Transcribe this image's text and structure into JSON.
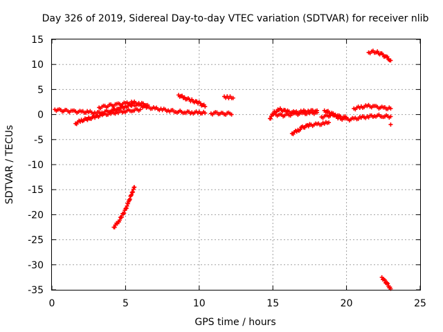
{
  "chart_data": {
    "type": "scatter",
    "title": "Day 326 of 2019, Sidereal Day-to-day VTEC variation (SDTVAR) for receiver nlib",
    "xlabel": "GPS time / hours",
    "ylabel": "SDTVAR / TECUs",
    "xlim": [
      0,
      25
    ],
    "ylim": [
      -35,
      15
    ],
    "xticks": [
      0,
      5,
      10,
      15,
      20,
      25
    ],
    "yticks": [
      15,
      10,
      5,
      0,
      -5,
      -10,
      -15,
      -20,
      -25,
      -30,
      -35
    ],
    "grid": true,
    "marker": "+",
    "color": "#ff0000",
    "series": [
      {
        "name": "sdtvar",
        "segments": [
          {
            "x": [
              0.2,
              0.6,
              1.0,
              1.5,
              2.0,
              2.5,
              3.0,
              3.5,
              4.0,
              4.5,
              5.0,
              5.5,
              6.0,
              6.5,
              7.0,
              7.5,
              8.0,
              8.5,
              9.0,
              9.5,
              10.0,
              10.4
            ],
            "y": [
              1.0,
              0.8,
              0.7,
              0.6,
              0.5,
              0.5,
              0.3,
              0.5,
              0.8,
              1.2,
              1.6,
              2.0,
              1.8,
              1.4,
              1.2,
              1.0,
              0.8,
              0.6,
              0.5,
              0.4,
              0.4,
              0.3
            ]
          },
          {
            "x": [
              1.6,
              2.0,
              2.5,
              3.0,
              3.5,
              4.0,
              4.5,
              5.0,
              5.5,
              6.0
            ],
            "y": [
              -1.8,
              -1.2,
              -0.8,
              -0.4,
              0.0,
              0.2,
              0.5,
              0.7,
              0.9,
              1.0
            ]
          },
          {
            "x": [
              3.2,
              3.6,
              4.0,
              4.5,
              5.0,
              5.5,
              6.0,
              6.5
            ],
            "y": [
              1.4,
              1.6,
              1.8,
              2.0,
              2.2,
              2.4,
              2.2,
              1.9
            ]
          },
          {
            "x": [
              8.6,
              9.0,
              9.5,
              10.0,
              10.4
            ],
            "y": [
              3.9,
              3.3,
              2.8,
              2.3,
              1.6
            ]
          },
          {
            "x": [
              10.8,
              11.2,
              11.6,
              12.0,
              12.2
            ],
            "y": [
              0.2,
              0.3,
              0.1,
              0.2,
              0.0
            ]
          },
          {
            "x": [
              11.7,
              11.9,
              12.1,
              12.3
            ],
            "y": [
              3.6,
              3.5,
              3.4,
              3.3
            ]
          },
          {
            "x": [
              4.2,
              4.5,
              4.8,
              5.0,
              5.2,
              5.4,
              5.6
            ],
            "y": [
              -22.5,
              -21.5,
              -20.0,
              -19.0,
              -17.5,
              -16.0,
              -14.5
            ]
          },
          {
            "x": [
              14.8,
              15.1,
              15.5,
              16.0,
              16.5,
              17.0,
              17.5,
              18.0
            ],
            "y": [
              -0.8,
              0.5,
              1.0,
              0.6,
              0.4,
              0.6,
              0.7,
              0.8
            ]
          },
          {
            "x": [
              15.2,
              15.6,
              16.0,
              16.5,
              17.0,
              17.5,
              18.0
            ],
            "y": [
              0.0,
              -0.2,
              -0.1,
              0.1,
              0.2,
              0.3,
              0.4
            ]
          },
          {
            "x": [
              16.3,
              16.7,
              17.0,
              17.5,
              18.0,
              18.5,
              18.8
            ],
            "y": [
              -3.8,
              -3.2,
              -2.6,
              -2.1,
              -2.0,
              -1.8,
              -1.6
            ]
          },
          {
            "x": [
              18.5,
              19.0,
              19.5,
              20.0,
              20.5,
              21.0,
              21.5,
              22.0,
              22.5,
              23.0
            ],
            "y": [
              0.8,
              0.2,
              -0.7,
              -1.0,
              -0.9,
              -0.6,
              -0.4,
              -0.2,
              -0.3,
              -0.4
            ]
          },
          {
            "x": [
              18.3,
              18.7,
              19.1,
              19.5,
              20.0
            ],
            "y": [
              -0.5,
              -0.3,
              0.0,
              -0.4,
              -0.6
            ]
          },
          {
            "x": [
              20.5,
              21.0,
              21.5,
              22.0,
              22.5,
              23.0
            ],
            "y": [
              1.2,
              1.5,
              1.7,
              1.5,
              1.3,
              1.2
            ]
          },
          {
            "x": [
              21.5,
              21.8,
              22.1,
              22.4,
              22.7,
              23.0
            ],
            "y": [
              12.4,
              12.6,
              12.4,
              12.0,
              11.5,
              10.8
            ]
          },
          {
            "x": [
              23.0
            ],
            "y": [
              -2.0
            ]
          },
          {
            "x": [
              22.4,
              22.6,
              22.8,
              23.0
            ],
            "y": [
              -32.5,
              -33.2,
              -34.0,
              -34.8
            ]
          }
        ]
      }
    ]
  }
}
